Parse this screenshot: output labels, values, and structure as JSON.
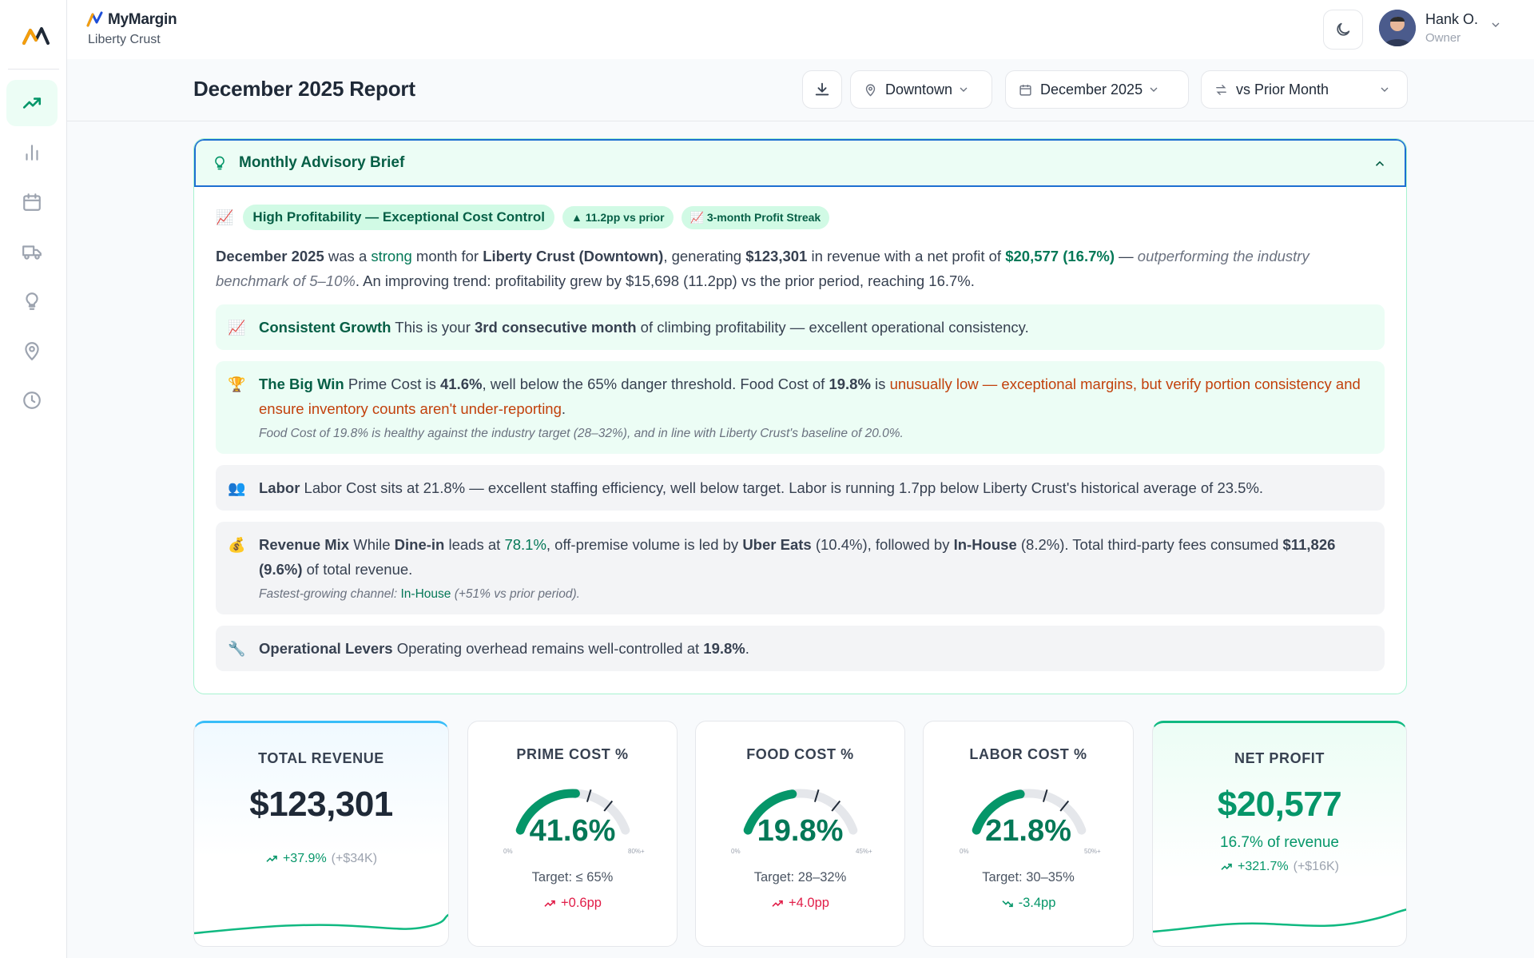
{
  "app": {
    "brand": "MyMargin",
    "location": "Liberty Crust"
  },
  "user": {
    "name": "Hank O.",
    "role": "Owner"
  },
  "sidebar": {
    "items": [
      {
        "icon": "trending-up-icon",
        "active": true
      },
      {
        "icon": "bar-chart-icon",
        "active": false
      },
      {
        "icon": "calendar-icon",
        "active": false
      },
      {
        "icon": "truck-icon",
        "active": false
      },
      {
        "icon": "lightbulb-icon",
        "active": false
      },
      {
        "icon": "map-pin-icon",
        "active": false
      },
      {
        "icon": "clock-icon",
        "active": false
      }
    ]
  },
  "header": {
    "title": "December 2025 Report",
    "location_select": "Downtown",
    "period_select": "December 2025",
    "compare_select": "vs Prior Month"
  },
  "advisory": {
    "title": "Monthly Advisory Brief",
    "badges": {
      "emoji": "📈",
      "main": "High Profitability — Exceptional Cost Control",
      "delta": "▲ 11.2pp vs prior",
      "streak": "📈 3-month Profit Streak"
    },
    "summary": {
      "s1": "December 2025",
      "s2": " was a ",
      "s3": "strong",
      "s4": " month for ",
      "s5": "Liberty Crust (Downtown)",
      "s6": ", generating ",
      "s7": "$123,301",
      "s8": " in revenue with a net profit of ",
      "s9": "$20,577 (16.7%)",
      "s10": " — ",
      "s11": "outperforming the industry benchmark of 5–10%",
      "s12": ". An improving trend: profitability grew by $15,698 (11.2pp) vs the prior period, reaching 16.7%."
    },
    "growth": {
      "emoji": "📈",
      "title": "Consistent Growth",
      "t1": " This is your ",
      "t2": "3rd consecutive month",
      "t3": " of climbing profitability — excellent operational consistency."
    },
    "bigwin": {
      "emoji": "🏆",
      "title": "The Big Win",
      "t1": " Prime Cost is ",
      "t2": "41.6%",
      "t3": ", well below the 65% danger threshold. Food Cost of ",
      "t4": "19.8%",
      "t5": " is ",
      "t6": "unusually low — exceptional margins, but verify portion consistency and ensure inventory counts aren't under-reporting",
      "t7": ".",
      "note": "Food Cost of 19.8% is healthy against the industry target (28–32%), and in line with Liberty Crust's baseline of 20.0%."
    },
    "labor": {
      "emoji": "👥",
      "title": "Labor",
      "text": " Labor Cost sits at 21.8% — excellent staffing efficiency, well below target. Labor is running 1.7pp below Liberty Crust's historical average of 23.5%."
    },
    "mix": {
      "emoji": "💰",
      "title": "Revenue Mix",
      "t1": " While ",
      "t2": "Dine-in",
      "t3": " leads at ",
      "t4": "78.1%",
      "t5": ", off-premise volume is led by ",
      "t6": "Uber Eats",
      "t7": " (10.4%), followed by ",
      "t8": "In-House",
      "t9": " (8.2%). Total third-party fees consumed ",
      "t10": "$11,826 (9.6%)",
      "t11": " of total revenue.",
      "n1": "Fastest-growing channel: ",
      "n2": "In-House",
      "n3": " (+51% vs prior period)."
    },
    "levers": {
      "emoji": "🔧",
      "title": "Operational Levers",
      "t1": " Operating overhead remains well-controlled at ",
      "t2": "19.8%",
      "t3": "."
    }
  },
  "kpis": {
    "revenue": {
      "label": "TOTAL REVENUE",
      "value": "$123,301",
      "delta": "+37.9%",
      "delta_abs": "(+$34K)"
    },
    "prime": {
      "label": "PRIME COST %",
      "value": "41.6%",
      "fraction": 0.52,
      "min": "0%",
      "max": "80%+",
      "target": "Target: ≤ 65%",
      "delta": "+0.6pp"
    },
    "food": {
      "label": "FOOD COST %",
      "value": "19.8%",
      "fraction": 0.44,
      "min": "0%",
      "max": "45%+",
      "target": "Target: 28–32%",
      "delta": "+4.0pp"
    },
    "labor": {
      "label": "LABOR COST %",
      "value": "21.8%",
      "fraction": 0.436,
      "min": "0%",
      "max": "50%+",
      "target": "Target: 30–35%",
      "delta": "-3.4pp"
    },
    "profit": {
      "label": "NET PROFIT",
      "value": "$20,577",
      "sub": "16.7% of revenue",
      "delta": "+321.7%",
      "delta_abs": "(+$16K)"
    }
  },
  "colors": {
    "accent": "#059669",
    "negative": "#e11d48",
    "panel_border": "#1d6fd1"
  }
}
